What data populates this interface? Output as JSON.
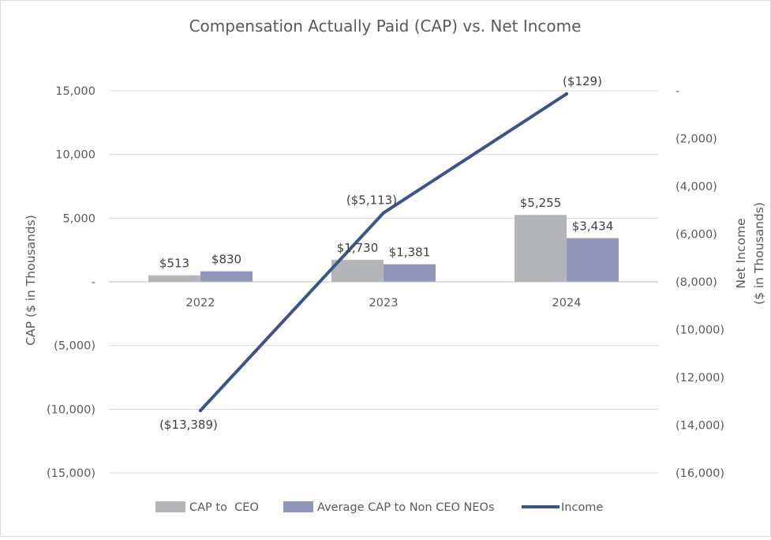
{
  "chart_data": {
    "type": "bar",
    "title": "Compensation Actually Paid (CAP) vs. Net Income",
    "categories": [
      "2022",
      "2023",
      "2024"
    ],
    "left_axis": {
      "label": "CAP ($ in Thousands)",
      "range": [
        -15000,
        15000
      ],
      "ticks": [
        15000,
        10000,
        5000,
        0,
        -5000,
        -10000,
        -15000
      ],
      "tick_labels": [
        "15,000",
        "10,000",
        "5,000",
        "-",
        "(5,000)",
        "(10,000)",
        "(15,000)"
      ]
    },
    "right_axis": {
      "label_line1": "Net Income",
      "label_line2": "($ in Thousands)",
      "range": [
        -16000,
        0
      ],
      "ticks": [
        0,
        -2000,
        -4000,
        -6000,
        -8000,
        -10000,
        -12000,
        -14000,
        -16000
      ],
      "tick_labels": [
        "-",
        "(2,000)",
        "(4,000)",
        "(6,000)",
        "(8,000)",
        "(10,000)",
        "(12,000)",
        "(14,000)",
        "(16,000)"
      ]
    },
    "series": [
      {
        "name": "CAP to  CEO",
        "kind": "bar",
        "axis": "left",
        "color": "#b4b5b8",
        "values": [
          513,
          1730,
          5255
        ],
        "labels": [
          "$513",
          "$1,730",
          "$5,255"
        ]
      },
      {
        "name": "Average CAP to Non CEO NEOs",
        "kind": "bar",
        "axis": "left",
        "color": "#9296bb",
        "values": [
          830,
          1381,
          3434
        ],
        "labels": [
          "$830",
          "$1,381",
          "$3,434"
        ]
      },
      {
        "name": "Income",
        "kind": "line",
        "axis": "right",
        "color": "#3e5486",
        "values": [
          -13389,
          -5113,
          -129
        ],
        "labels": [
          "($13,389)",
          "($5,113)",
          "($129)"
        ]
      }
    ],
    "grid": true,
    "legend_position": "bottom"
  }
}
